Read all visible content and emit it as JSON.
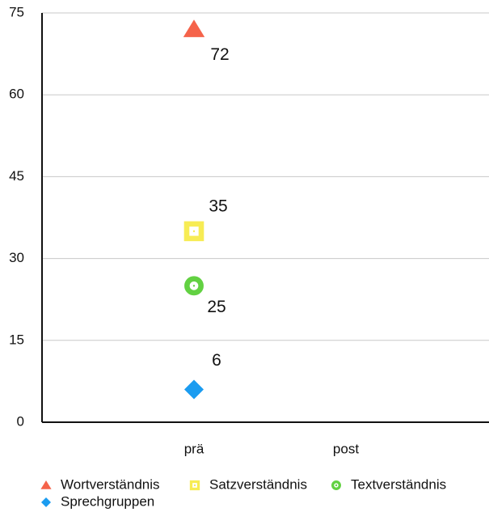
{
  "chart_data": {
    "type": "scatter",
    "categories": [
      "prä",
      "post"
    ],
    "series": [
      {
        "name": "Wortverständnis",
        "color": "#f5634a",
        "marker": "triangle",
        "values": [
          72,
          null
        ]
      },
      {
        "name": "Satzverständnis",
        "color": "#f7ec54",
        "marker": "square",
        "values": [
          35,
          null
        ]
      },
      {
        "name": "Textverständnis",
        "color": "#62d142",
        "marker": "circle",
        "values": [
          25,
          null
        ]
      },
      {
        "name": "Sprechgruppen",
        "color": "#1b9cf0",
        "marker": "diamond",
        "values": [
          6,
          null
        ]
      }
    ],
    "ylim": [
      0,
      75
    ],
    "yticks": [
      0,
      15,
      30,
      45,
      60,
      75
    ],
    "grid": true,
    "legend": "bottom"
  }
}
